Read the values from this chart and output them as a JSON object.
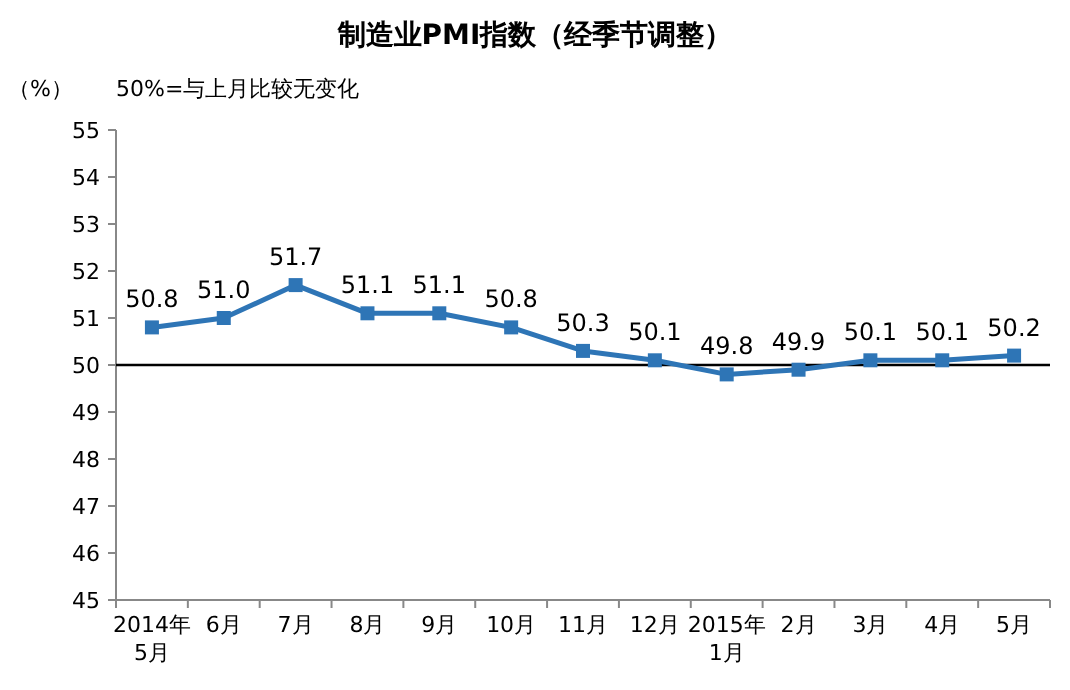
{
  "chart_data": {
    "type": "line",
    "title": "制造业PMI指数（经季节调整）",
    "ylabel": "（%）",
    "annotations": [
      "50%=与上月比较无变化"
    ],
    "categories": [
      "2014年\n5月",
      "6月",
      "7月",
      "8月",
      "9月",
      "10月",
      "11月",
      "12月",
      "2015年\n1月",
      "2月",
      "3月",
      "4月",
      "5月"
    ],
    "series": [
      {
        "color": "#2e75b6",
        "values": [
          50.8,
          51.0,
          51.7,
          51.1,
          51.1,
          50.8,
          50.3,
          50.1,
          49.8,
          49.9,
          50.1,
          50.1,
          50.2
        ]
      }
    ],
    "value_labels": [
      "50.8",
      "51.0",
      "51.7",
      "51.1",
      "51.1",
      "50.8",
      "50.3",
      "50.1",
      "49.8",
      "49.9",
      "50.1",
      "50.1",
      "50.2"
    ],
    "ylim": [
      45,
      55
    ],
    "yticks": [
      45,
      46,
      47,
      48,
      49,
      50,
      51,
      52,
      53,
      54,
      55
    ],
    "ref_lines": [
      {
        "axis": "y",
        "value": 50,
        "color": "#000000"
      }
    ],
    "marker": "square",
    "line_style": "solid",
    "grid": false
  }
}
